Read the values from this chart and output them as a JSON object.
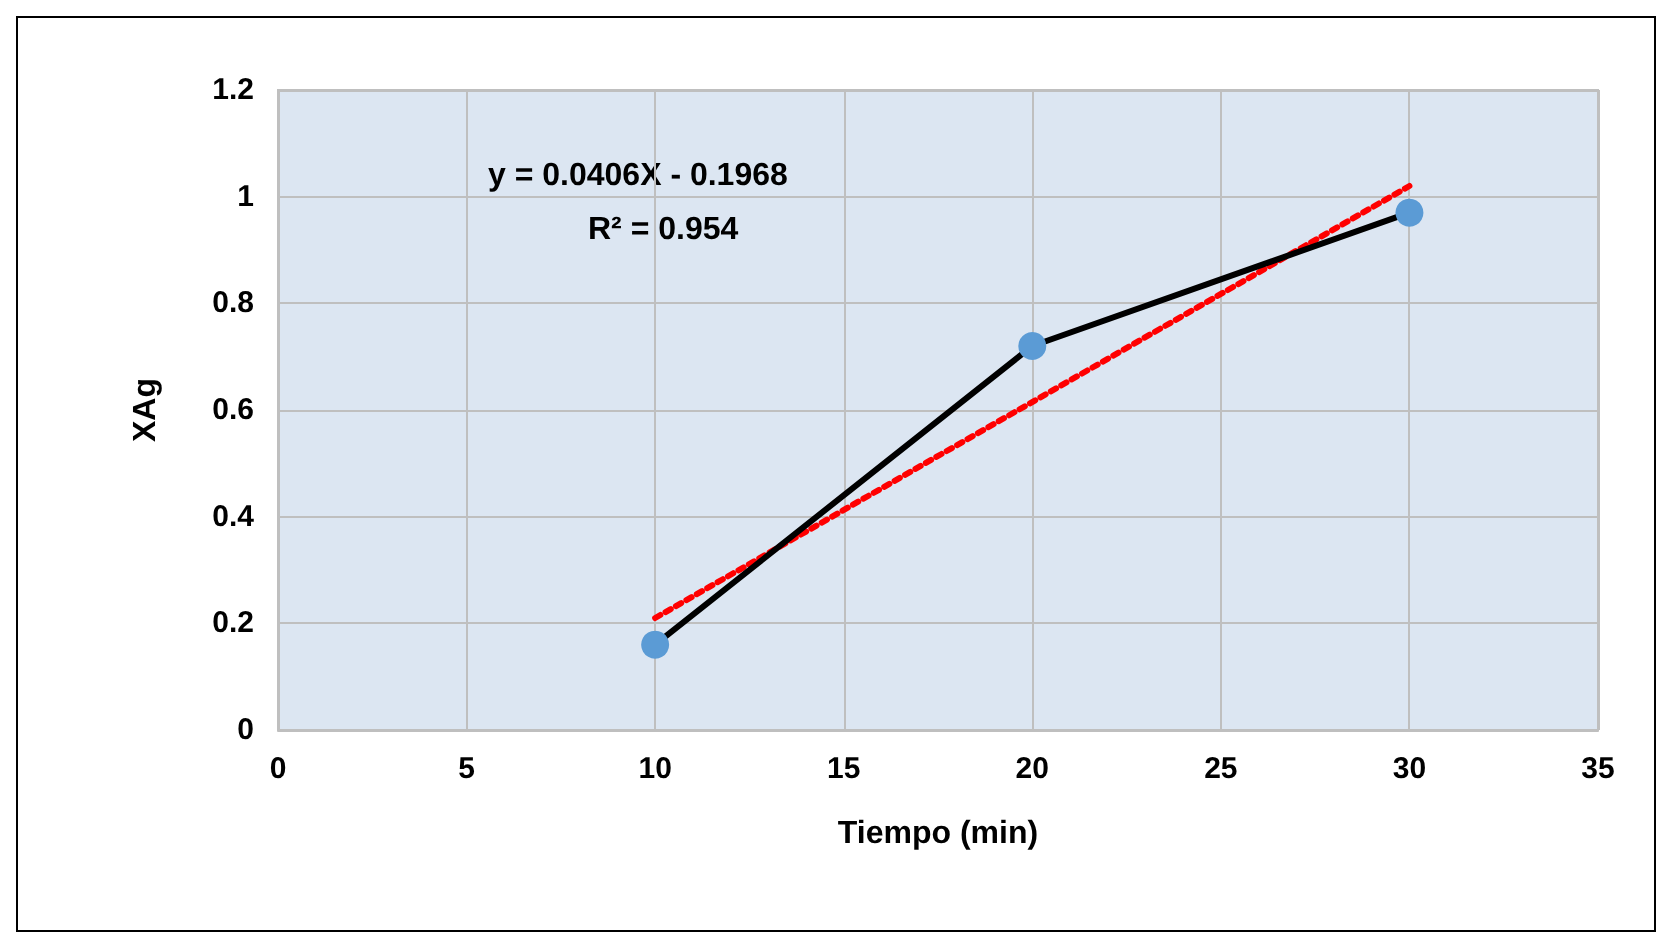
{
  "chart_data": {
    "type": "line",
    "xlabel": "Tiempo (min)",
    "ylabel": "XAg",
    "xlim": [
      0,
      35
    ],
    "xticks": [
      0,
      5,
      10,
      15,
      20,
      25,
      30,
      35
    ],
    "ylim": [
      0,
      1.2
    ],
    "yticks": [
      0,
      0.2,
      0.4,
      0.6,
      0.8,
      1,
      1.2
    ],
    "grid": true,
    "series": [
      {
        "x": [
          10,
          20,
          30
        ],
        "values": [
          0.16,
          0.72,
          0.97
        ],
        "color": "#000000",
        "colors": [
          "#5b9bd5",
          "#5b9bd5",
          "#5b9bd5"
        ],
        "marker": "circle",
        "line_style": "solid"
      },
      {
        "x": [
          10,
          30
        ],
        "values": [
          0.21,
          1.02
        ],
        "color": "#ff0000",
        "marker": "none",
        "line_style": "dotted"
      }
    ],
    "annotations": [
      "y = 0.0406X - 0.1968",
      "R² = 0.954"
    ]
  }
}
